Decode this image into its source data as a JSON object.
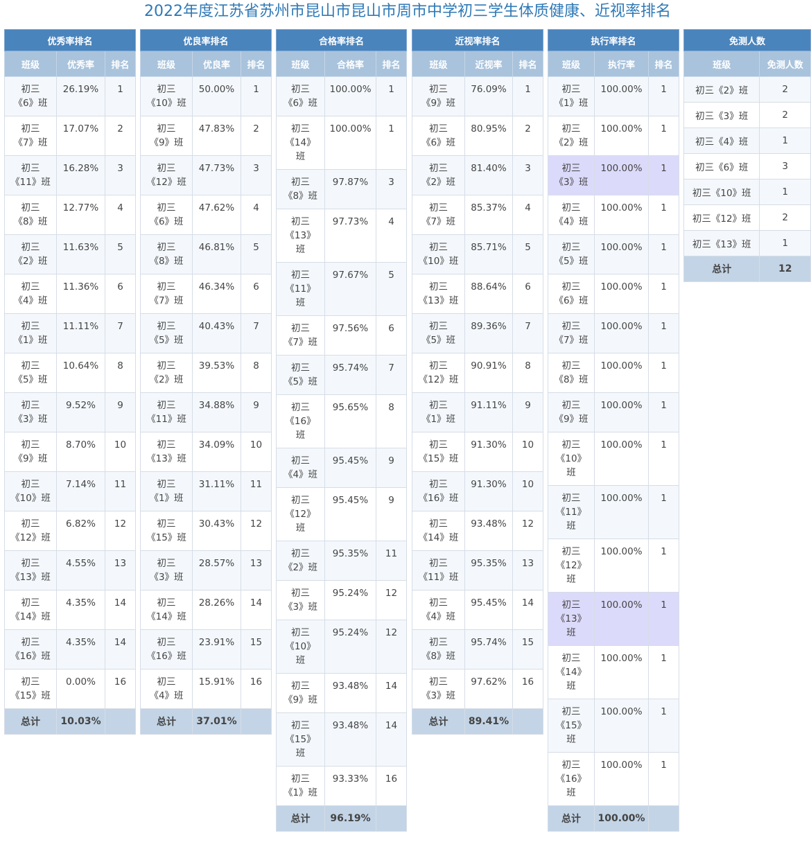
{
  "title": "2022年度江苏省苏州市昆山市昆山市周市中学初三学生体质健康、近视率排名",
  "tables": [
    {
      "heading": "优秀率排名",
      "col_class": "班级",
      "col_value": "优秀率",
      "col_rank": "排名",
      "rows": [
        {
          "cls": "初三《6》班",
          "val": "26.19%",
          "rank": "1"
        },
        {
          "cls": "初三《7》班",
          "val": "17.07%",
          "rank": "2"
        },
        {
          "cls": "初三《11》班",
          "val": "16.28%",
          "rank": "3"
        },
        {
          "cls": "初三《8》班",
          "val": "12.77%",
          "rank": "4"
        },
        {
          "cls": "初三《2》班",
          "val": "11.63%",
          "rank": "5"
        },
        {
          "cls": "初三《4》班",
          "val": "11.36%",
          "rank": "6"
        },
        {
          "cls": "初三《1》班",
          "val": "11.11%",
          "rank": "7"
        },
        {
          "cls": "初三《5》班",
          "val": "10.64%",
          "rank": "8"
        },
        {
          "cls": "初三《3》班",
          "val": "9.52%",
          "rank": "9"
        },
        {
          "cls": "初三《9》班",
          "val": "8.70%",
          "rank": "10"
        },
        {
          "cls": "初三《10》班",
          "val": "7.14%",
          "rank": "11"
        },
        {
          "cls": "初三《12》班",
          "val": "6.82%",
          "rank": "12"
        },
        {
          "cls": "初三《13》班",
          "val": "4.55%",
          "rank": "13"
        },
        {
          "cls": "初三《14》班",
          "val": "4.35%",
          "rank": "14"
        },
        {
          "cls": "初三《16》班",
          "val": "4.35%",
          "rank": "14"
        },
        {
          "cls": "初三《15》班",
          "val": "0.00%",
          "rank": "16"
        }
      ],
      "total_label": "总计",
      "total_value": "10.03%"
    },
    {
      "heading": "优良率排名",
      "col_class": "班级",
      "col_value": "优良率",
      "col_rank": "排名",
      "rows": [
        {
          "cls": "初三《10》班",
          "val": "50.00%",
          "rank": "1"
        },
        {
          "cls": "初三《9》班",
          "val": "47.83%",
          "rank": "2"
        },
        {
          "cls": "初三《12》班",
          "val": "47.73%",
          "rank": "3"
        },
        {
          "cls": "初三《6》班",
          "val": "47.62%",
          "rank": "4"
        },
        {
          "cls": "初三《8》班",
          "val": "46.81%",
          "rank": "5"
        },
        {
          "cls": "初三《7》班",
          "val": "46.34%",
          "rank": "6"
        },
        {
          "cls": "初三《5》班",
          "val": "40.43%",
          "rank": "7"
        },
        {
          "cls": "初三《2》班",
          "val": "39.53%",
          "rank": "8"
        },
        {
          "cls": "初三《11》班",
          "val": "34.88%",
          "rank": "9"
        },
        {
          "cls": "初三《13》班",
          "val": "34.09%",
          "rank": "10"
        },
        {
          "cls": "初三《1》班",
          "val": "31.11%",
          "rank": "11"
        },
        {
          "cls": "初三《15》班",
          "val": "30.43%",
          "rank": "12"
        },
        {
          "cls": "初三《3》班",
          "val": "28.57%",
          "rank": "13"
        },
        {
          "cls": "初三《14》班",
          "val": "28.26%",
          "rank": "14"
        },
        {
          "cls": "初三《16》班",
          "val": "23.91%",
          "rank": "15"
        },
        {
          "cls": "初三《4》班",
          "val": "15.91%",
          "rank": "16"
        }
      ],
      "total_label": "总计",
      "total_value": "37.01%"
    },
    {
      "heading": "合格率排名",
      "col_class": "班级",
      "col_value": "合格率",
      "col_rank": "排名",
      "rows": [
        {
          "cls": "初三《6》班",
          "val": "100.00%",
          "rank": "1"
        },
        {
          "cls": "初三《14》班",
          "val": "100.00%",
          "rank": "1"
        },
        {
          "cls": "初三《8》班",
          "val": "97.87%",
          "rank": "3"
        },
        {
          "cls": "初三《13》班",
          "val": "97.73%",
          "rank": "4"
        },
        {
          "cls": "初三《11》班",
          "val": "97.67%",
          "rank": "5"
        },
        {
          "cls": "初三《7》班",
          "val": "97.56%",
          "rank": "6"
        },
        {
          "cls": "初三《5》班",
          "val": "95.74%",
          "rank": "7"
        },
        {
          "cls": "初三《16》班",
          "val": "95.65%",
          "rank": "8"
        },
        {
          "cls": "初三《4》班",
          "val": "95.45%",
          "rank": "9"
        },
        {
          "cls": "初三《12》班",
          "val": "95.45%",
          "rank": "9"
        },
        {
          "cls": "初三《2》班",
          "val": "95.35%",
          "rank": "11"
        },
        {
          "cls": "初三《3》班",
          "val": "95.24%",
          "rank": "12"
        },
        {
          "cls": "初三《10》班",
          "val": "95.24%",
          "rank": "12"
        },
        {
          "cls": "初三《9》班",
          "val": "93.48%",
          "rank": "14"
        },
        {
          "cls": "初三《15》班",
          "val": "93.48%",
          "rank": "14"
        },
        {
          "cls": "初三《1》班",
          "val": "93.33%",
          "rank": "16"
        }
      ],
      "total_label": "总计",
      "total_value": "96.19%"
    },
    {
      "heading": "近视率排名",
      "col_class": "班级",
      "col_value": "近视率",
      "col_rank": "排名",
      "rows": [
        {
          "cls": "初三《9》班",
          "val": "76.09%",
          "rank": "1"
        },
        {
          "cls": "初三《6》班",
          "val": "80.95%",
          "rank": "2"
        },
        {
          "cls": "初三《2》班",
          "val": "81.40%",
          "rank": "3"
        },
        {
          "cls": "初三《7》班",
          "val": "85.37%",
          "rank": "4"
        },
        {
          "cls": "初三《10》班",
          "val": "85.71%",
          "rank": "5"
        },
        {
          "cls": "初三《13》班",
          "val": "88.64%",
          "rank": "6"
        },
        {
          "cls": "初三《5》班",
          "val": "89.36%",
          "rank": "7"
        },
        {
          "cls": "初三《12》班",
          "val": "90.91%",
          "rank": "8"
        },
        {
          "cls": "初三《1》班",
          "val": "91.11%",
          "rank": "9"
        },
        {
          "cls": "初三《15》班",
          "val": "91.30%",
          "rank": "10"
        },
        {
          "cls": "初三《16》班",
          "val": "91.30%",
          "rank": "10"
        },
        {
          "cls": "初三《14》班",
          "val": "93.48%",
          "rank": "12"
        },
        {
          "cls": "初三《11》班",
          "val": "95.35%",
          "rank": "13"
        },
        {
          "cls": "初三《4》班",
          "val": "95.45%",
          "rank": "14"
        },
        {
          "cls": "初三《8》班",
          "val": "95.74%",
          "rank": "15"
        },
        {
          "cls": "初三《3》班",
          "val": "97.62%",
          "rank": "16"
        }
      ],
      "total_label": "总计",
      "total_value": "89.41%"
    },
    {
      "heading": "执行率排名",
      "col_class": "班级",
      "col_value": "执行率",
      "col_rank": "排名",
      "rows": [
        {
          "cls": "初三《1》班",
          "val": "100.00%",
          "rank": "1"
        },
        {
          "cls": "初三《2》班",
          "val": "100.00%",
          "rank": "1"
        },
        {
          "cls": "初三《3》班",
          "val": "100.00%",
          "rank": "1",
          "highlight": true
        },
        {
          "cls": "初三《4》班",
          "val": "100.00%",
          "rank": "1"
        },
        {
          "cls": "初三《5》班",
          "val": "100.00%",
          "rank": "1"
        },
        {
          "cls": "初三《6》班",
          "val": "100.00%",
          "rank": "1"
        },
        {
          "cls": "初三《7》班",
          "val": "100.00%",
          "rank": "1"
        },
        {
          "cls": "初三《8》班",
          "val": "100.00%",
          "rank": "1"
        },
        {
          "cls": "初三《9》班",
          "val": "100.00%",
          "rank": "1"
        },
        {
          "cls": "初三《10》班",
          "val": "100.00%",
          "rank": "1"
        },
        {
          "cls": "初三《11》班",
          "val": "100.00%",
          "rank": "1"
        },
        {
          "cls": "初三《12》班",
          "val": "100.00%",
          "rank": "1"
        },
        {
          "cls": "初三《13》班",
          "val": "100.00%",
          "rank": "1",
          "highlight": true
        },
        {
          "cls": "初三《14》班",
          "val": "100.00%",
          "rank": "1"
        },
        {
          "cls": "初三《15》班",
          "val": "100.00%",
          "rank": "1"
        },
        {
          "cls": "初三《16》班",
          "val": "100.00%",
          "rank": "1"
        }
      ],
      "total_label": "总计",
      "total_value": "100.00%"
    }
  ],
  "exempt": {
    "heading": "免测人数",
    "col_class": "班级",
    "col_count": "免测人数",
    "rows": [
      {
        "cls": "初三《2》班",
        "count": "2"
      },
      {
        "cls": "初三《3》班",
        "count": "2"
      },
      {
        "cls": "初三《4》班",
        "count": "1"
      },
      {
        "cls": "初三《6》班",
        "count": "3"
      },
      {
        "cls": "初三《10》班",
        "count": "1"
      },
      {
        "cls": "初三《12》班",
        "count": "2"
      },
      {
        "cls": "初三《13》班",
        "count": "1"
      }
    ],
    "total_label": "总计",
    "total_value": "12"
  }
}
